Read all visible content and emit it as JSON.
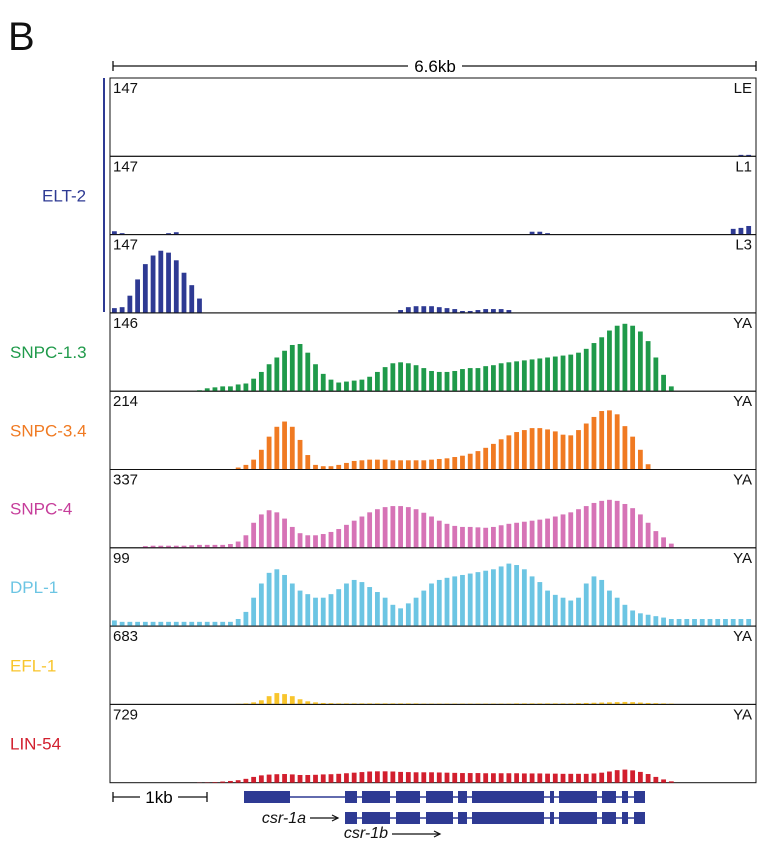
{
  "panel_label": "B",
  "span_label": "6.6kb",
  "scale_label": "1kb",
  "colors": {
    "ELT-2": "#2e3a93",
    "SNPC-1.3": "#1f9a4a",
    "SNPC-3.4": "#f07a22",
    "SNPC-4": "#c63d9a",
    "DPL-1": "#6cc5e3",
    "EFL-1": "#f8c52c",
    "LIN-54": "#d21f2e",
    "gene": "#2e3a93"
  },
  "genes": [
    "csr-1a",
    "csr-1b"
  ],
  "chart_data": {
    "type": "bar",
    "xlabel": "",
    "ylabel": "",
    "tracks": [
      {
        "factor": "ELT-2",
        "stage": "LE",
        "ymax": "147",
        "max": 147,
        "values": [
          0,
          0,
          0,
          0,
          0,
          0,
          0,
          0,
          0,
          0,
          0,
          0,
          0,
          0,
          0,
          0,
          0,
          0,
          0,
          0,
          0,
          0,
          0,
          0,
          0,
          0,
          0,
          0,
          0,
          0,
          0,
          0,
          0,
          0,
          0,
          0,
          0,
          0,
          0,
          0,
          0,
          0,
          0,
          0,
          0,
          0,
          0,
          0,
          0,
          0,
          0,
          0,
          0,
          0,
          0,
          0,
          0,
          0,
          0,
          0,
          0,
          0,
          0,
          0,
          0,
          0,
          0,
          0,
          0,
          0,
          0,
          0,
          0,
          0,
          0,
          0,
          0,
          0,
          0,
          0,
          0,
          3,
          3
        ]
      },
      {
        "factor": "ELT-2",
        "stage": "L1",
        "ymax": "147",
        "max": 147,
        "values": [
          7,
          3,
          0,
          0,
          0,
          0,
          0,
          3,
          5,
          0,
          0,
          0,
          0,
          0,
          0,
          0,
          0,
          0,
          0,
          0,
          0,
          0,
          0,
          0,
          0,
          0,
          0,
          0,
          0,
          0,
          0,
          0,
          0,
          0,
          0,
          0,
          0,
          0,
          0,
          0,
          0,
          0,
          0,
          0,
          0,
          0,
          0,
          0,
          0,
          0,
          0,
          0,
          0,
          0,
          6,
          6,
          3,
          0,
          0,
          0,
          0,
          0,
          0,
          0,
          0,
          0,
          0,
          0,
          0,
          0,
          0,
          0,
          0,
          0,
          0,
          0,
          0,
          0,
          0,
          0,
          12,
          14,
          18
        ]
      },
      {
        "factor": "ELT-2",
        "stage": "L3",
        "ymax": "147",
        "max": 147,
        "values": [
          10,
          12,
          36,
          70,
          102,
          120,
          130,
          126,
          110,
          84,
          58,
          30,
          0,
          0,
          0,
          0,
          0,
          0,
          0,
          0,
          0,
          0,
          0,
          0,
          0,
          0,
          0,
          0,
          0,
          0,
          0,
          0,
          0,
          0,
          0,
          0,
          0,
          6,
          12,
          14,
          14,
          14,
          12,
          10,
          8,
          4,
          4,
          6,
          8,
          8,
          8,
          6,
          0,
          0,
          0,
          0,
          0,
          0,
          0,
          0,
          0,
          0,
          0,
          0,
          0,
          0,
          0,
          0,
          0,
          0,
          0,
          0,
          0,
          0,
          0,
          0,
          0,
          0,
          0,
          0,
          0,
          0,
          0
        ]
      },
      {
        "factor": "SNPC-1.3",
        "stage": "YA",
        "ymax": "146",
        "max": 146,
        "values": [
          0,
          0,
          0,
          0,
          0,
          0,
          0,
          0,
          0,
          0,
          0,
          2,
          6,
          8,
          10,
          10,
          14,
          16,
          26,
          40,
          56,
          70,
          84,
          96,
          98,
          80,
          56,
          36,
          24,
          18,
          20,
          22,
          24,
          30,
          40,
          50,
          58,
          60,
          58,
          54,
          48,
          42,
          40,
          40,
          42,
          46,
          48,
          48,
          52,
          54,
          58,
          60,
          62,
          64,
          66,
          68,
          70,
          72,
          74,
          76,
          80,
          88,
          100,
          112,
          126,
          136,
          140,
          136,
          124,
          104,
          70,
          34,
          10,
          0,
          0,
          0,
          0,
          0,
          0,
          0,
          0,
          0,
          0
        ]
      },
      {
        "factor": "SNPC-3.4",
        "stage": "YA",
        "ymax": "214",
        "max": 214,
        "values": [
          0,
          0,
          0,
          0,
          0,
          0,
          0,
          0,
          0,
          0,
          0,
          0,
          0,
          0,
          0,
          0,
          6,
          14,
          30,
          60,
          100,
          130,
          146,
          130,
          90,
          44,
          14,
          10,
          10,
          14,
          20,
          26,
          28,
          30,
          30,
          30,
          28,
          28,
          28,
          28,
          28,
          30,
          32,
          34,
          38,
          42,
          48,
          56,
          66,
          78,
          92,
          104,
          114,
          120,
          126,
          126,
          122,
          116,
          106,
          104,
          120,
          140,
          160,
          178,
          180,
          168,
          132,
          100,
          60,
          16,
          0,
          0,
          0,
          0,
          0,
          0,
          0,
          0,
          0,
          0,
          0,
          0,
          0
        ]
      },
      {
        "factor": "SNPC-4",
        "stage": "YA",
        "ymax": "337",
        "max": 337,
        "values": [
          0,
          0,
          0,
          0,
          8,
          10,
          10,
          10,
          10,
          10,
          12,
          14,
          14,
          14,
          14,
          18,
          30,
          60,
          120,
          160,
          180,
          170,
          140,
          100,
          70,
          60,
          60,
          66,
          76,
          90,
          110,
          130,
          150,
          170,
          185,
          195,
          200,
          200,
          195,
          185,
          168,
          150,
          130,
          115,
          105,
          100,
          100,
          98,
          96,
          100,
          108,
          115,
          120,
          125,
          130,
          135,
          140,
          150,
          160,
          170,
          185,
          200,
          215,
          225,
          230,
          225,
          210,
          190,
          160,
          120,
          80,
          50,
          20,
          0,
          0,
          0,
          0,
          0,
          0,
          0,
          0,
          0,
          0
        ]
      },
      {
        "factor": "DPL-1",
        "stage": "YA",
        "ymax": "99",
        "max": 99,
        "values": [
          8,
          6,
          6,
          6,
          6,
          6,
          6,
          6,
          6,
          6,
          6,
          6,
          6,
          6,
          6,
          6,
          10,
          20,
          40,
          60,
          75,
          80,
          72,
          60,
          50,
          45,
          40,
          40,
          45,
          52,
          60,
          65,
          62,
          55,
          48,
          40,
          30,
          25,
          32,
          40,
          50,
          60,
          65,
          68,
          70,
          72,
          74,
          76,
          78,
          80,
          84,
          88,
          86,
          80,
          70,
          62,
          50,
          44,
          40,
          36,
          40,
          60,
          70,
          65,
          50,
          40,
          30,
          22,
          18,
          16,
          14,
          12,
          10,
          10,
          10,
          10,
          10,
          10,
          10,
          10,
          10,
          10,
          10
        ]
      },
      {
        "factor": "EFL-1",
        "stage": "YA",
        "ymax": "683",
        "max": 683,
        "values": [
          0,
          0,
          0,
          0,
          0,
          0,
          0,
          0,
          0,
          0,
          0,
          0,
          0,
          0,
          0,
          0,
          6,
          10,
          20,
          40,
          80,
          110,
          100,
          80,
          50,
          30,
          20,
          14,
          12,
          10,
          10,
          10,
          10,
          10,
          10,
          10,
          10,
          10,
          10,
          10,
          8,
          8,
          8,
          8,
          8,
          8,
          8,
          8,
          8,
          8,
          8,
          8,
          10,
          10,
          10,
          10,
          10,
          10,
          10,
          10,
          12,
          14,
          16,
          18,
          20,
          22,
          24,
          22,
          18,
          14,
          12,
          10,
          8,
          0,
          0,
          0,
          0,
          0,
          0,
          0,
          0,
          0,
          0
        ]
      },
      {
        "factor": "LIN-54",
        "stage": "YA",
        "ymax": "729",
        "max": 729,
        "values": [
          0,
          0,
          0,
          0,
          0,
          0,
          0,
          0,
          0,
          0,
          0,
          2,
          3,
          6,
          12,
          18,
          26,
          40,
          60,
          76,
          84,
          88,
          90,
          86,
          80,
          80,
          82,
          86,
          88,
          92,
          98,
          104,
          110,
          116,
          118,
          118,
          116,
          112,
          110,
          108,
          108,
          108,
          106,
          104,
          102,
          100,
          100,
          100,
          98,
          98,
          98,
          98,
          98,
          96,
          96,
          96,
          94,
          94,
          92,
          92,
          92,
          92,
          96,
          104,
          116,
          130,
          136,
          128,
          112,
          90,
          60,
          34,
          14,
          0,
          0,
          0,
          0,
          0,
          0,
          0,
          0,
          0,
          0
        ]
      }
    ]
  }
}
